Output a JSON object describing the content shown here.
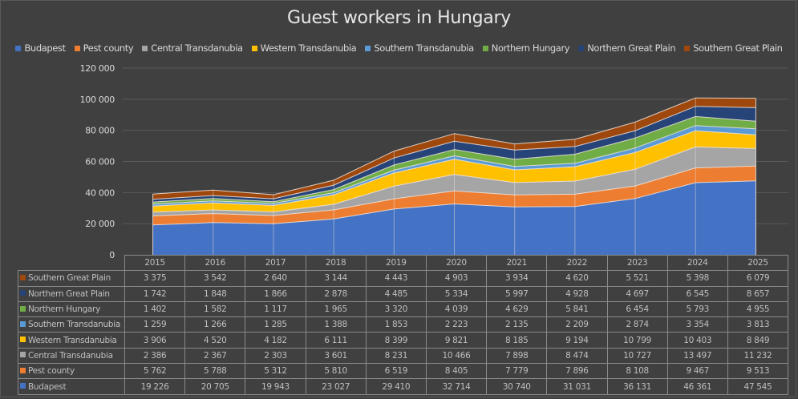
{
  "chart_data": {
    "type": "area",
    "stacked": true,
    "title": "Guest workers in Hungary",
    "xlabel": "",
    "ylabel": "",
    "ylim": [
      0,
      120000
    ],
    "yticks": [
      0,
      20000,
      40000,
      60000,
      80000,
      100000,
      120000
    ],
    "ytick_labels": [
      "0",
      "20 000",
      "40 000",
      "60 000",
      "80 000",
      "100 000",
      "120 000"
    ],
    "grid": true,
    "legend_position": "top",
    "data_table": true,
    "categories": [
      "2015",
      "2016",
      "2017",
      "2018",
      "2019",
      "2020",
      "2021",
      "2022",
      "2023",
      "2024",
      "2025"
    ],
    "series": [
      {
        "name": "Budapest",
        "color": "#4472C4",
        "values": [
          19226,
          20705,
          19943,
          23027,
          29410,
          32714,
          30740,
          31031,
          36131,
          46361,
          47545
        ]
      },
      {
        "name": "Pest county",
        "color": "#ED7D31",
        "values": [
          5762,
          5788,
          5312,
          5810,
          6519,
          8405,
          7779,
          7896,
          8108,
          9467,
          9513
        ]
      },
      {
        "name": "Central Transdanubia",
        "color": "#A5A5A5",
        "values": [
          2386,
          2367,
          2303,
          3601,
          8231,
          10466,
          7898,
          8474,
          10727,
          13497,
          11232
        ]
      },
      {
        "name": "Western Transdanubia",
        "color": "#FFC000",
        "values": [
          3906,
          4520,
          4182,
          6111,
          8399,
          9821,
          8185,
          9194,
          10799,
          10403,
          8849
        ]
      },
      {
        "name": "Southern Transdanubia",
        "color": "#5B9BD5",
        "values": [
          1259,
          1266,
          1285,
          1388,
          1853,
          2223,
          2135,
          2209,
          2874,
          3354,
          3813
        ]
      },
      {
        "name": "Northern Hungary",
        "color": "#70AD47",
        "values": [
          1402,
          1582,
          1117,
          1965,
          3320,
          4039,
          4629,
          5841,
          6454,
          5793,
          4955
        ]
      },
      {
        "name": "Northern Great Plain",
        "color": "#264478",
        "values": [
          1742,
          1848,
          1866,
          2878,
          4485,
          5334,
          5997,
          4928,
          4697,
          6545,
          8657
        ]
      },
      {
        "name": "Southern Great Plain",
        "color": "#9E480E",
        "values": [
          3375,
          3542,
          2640,
          3144,
          4443,
          4903,
          3934,
          4620,
          5521,
          5398,
          6079
        ]
      }
    ],
    "table_values_display": {
      "Southern Great Plain": [
        "3 375",
        "3 542",
        "2 640",
        "3 144",
        "4 443",
        "4 903",
        "3 934",
        "4 620",
        "5 521",
        "5 398",
        "6 079"
      ],
      "Northern Great Plain": [
        "1 742",
        "1 848",
        "1 866",
        "2 878",
        "4 485",
        "5 334",
        "5 997",
        "4 928",
        "4 697",
        "6 545",
        "8 657"
      ],
      "Northern Hungary": [
        "1 402",
        "1 582",
        "1 117",
        "1 965",
        "3 320",
        "4 039",
        "4 629",
        "5 841",
        "6 454",
        "5 793",
        "4 955"
      ],
      "Southern Transdanubia": [
        "1 259",
        "1 266",
        "1 285",
        "1 388",
        "1 853",
        "2 223",
        "2 135",
        "2 209",
        "2 874",
        "3 354",
        "3 813"
      ],
      "Western Transdanubia": [
        "3 906",
        "4 520",
        "4 182",
        "6 111",
        "8 399",
        "9 821",
        "8 185",
        "9 194",
        "10 799",
        "10 403",
        "8 849"
      ],
      "Central Transdanubia": [
        "2 386",
        "2 367",
        "2 303",
        "3 601",
        "8 231",
        "10 466",
        "7 898",
        "8 474",
        "10 727",
        "13 497",
        "11 232"
      ],
      "Pest county": [
        "5 762",
        "5 788",
        "5 312",
        "5 810",
        "6 519",
        "8 405",
        "7 779",
        "7 896",
        "8 108",
        "9 467",
        "9 513"
      ],
      "Budapest": [
        "19 226",
        "20 705",
        "19 943",
        "23 027",
        "29 410",
        "32 714",
        "30 740",
        "31 031",
        "36 131",
        "46 361",
        "47 545"
      ]
    },
    "table_row_order": [
      "Southern Great Plain",
      "Northern Great Plain",
      "Northern Hungary",
      "Southern Transdanubia",
      "Western Transdanubia",
      "Central Transdanubia",
      "Pest county",
      "Budapest"
    ]
  }
}
